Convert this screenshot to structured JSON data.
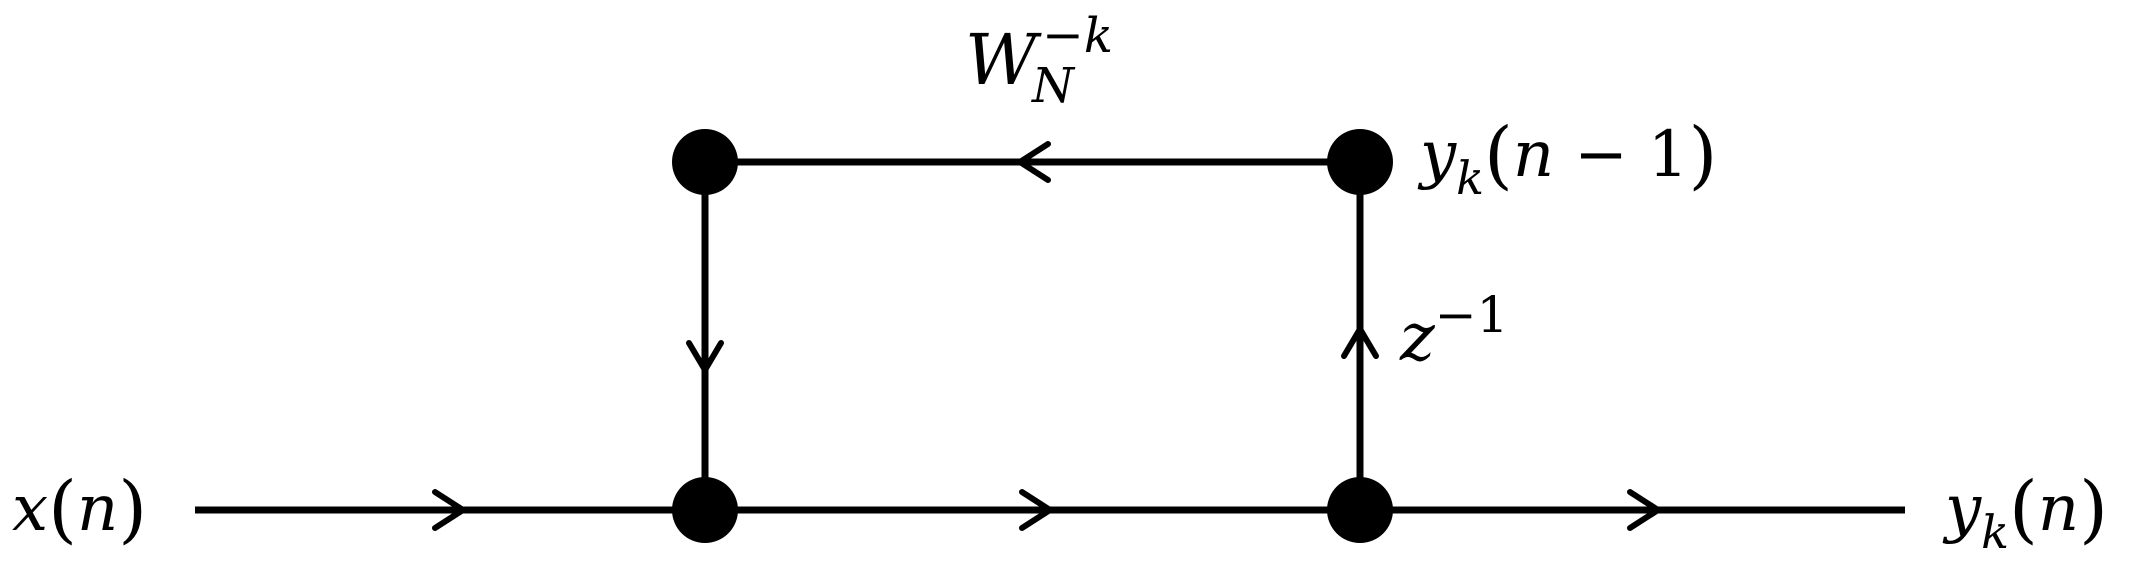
{
  "diagram": {
    "input_label": {
      "var": "x",
      "arg": "n"
    },
    "output_label": {
      "var": "y",
      "sub": "k",
      "arg": "n"
    },
    "feedback_label": {
      "var": "y",
      "sub": "k",
      "arg_var": "n",
      "minus": "−",
      "arg_num": "1"
    },
    "twiddle_label": {
      "base": "W",
      "sub": "N",
      "sup_sign": "−",
      "sup_var": "k"
    },
    "delay_label": {
      "base": "z",
      "sup": "−1"
    },
    "paren_open": "(",
    "paren_close": ")",
    "colors": {
      "stroke": "#000000",
      "background": "#ffffff"
    }
  }
}
